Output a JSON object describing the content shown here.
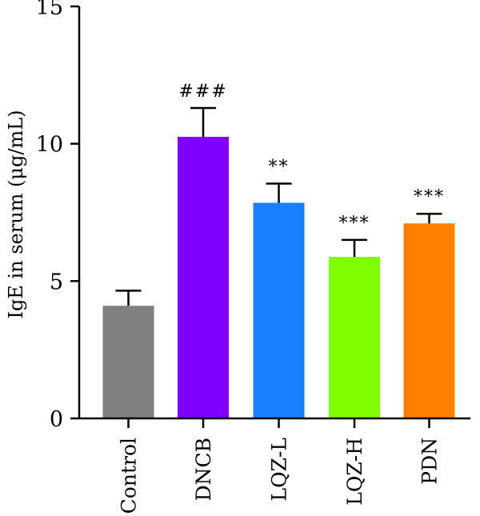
{
  "chart_data": {
    "type": "bar",
    "ylabel": "IgE in serum (μg/mL)",
    "ylim": [
      0,
      15
    ],
    "yticks": [
      0,
      5,
      10,
      15
    ],
    "categories": [
      "Control",
      "DNCB",
      "LQZ-L",
      "LQZ-H",
      "PDN"
    ],
    "values": [
      4.1,
      10.25,
      7.85,
      5.88,
      7.1
    ],
    "errors": [
      0.55,
      1.05,
      0.7,
      0.62,
      0.35
    ],
    "significance": [
      "",
      "###",
      "**",
      "***",
      "***"
    ],
    "colors": [
      "#808080",
      "#8000ff",
      "#1a80ff",
      "#80ff00",
      "#ff8000"
    ]
  }
}
